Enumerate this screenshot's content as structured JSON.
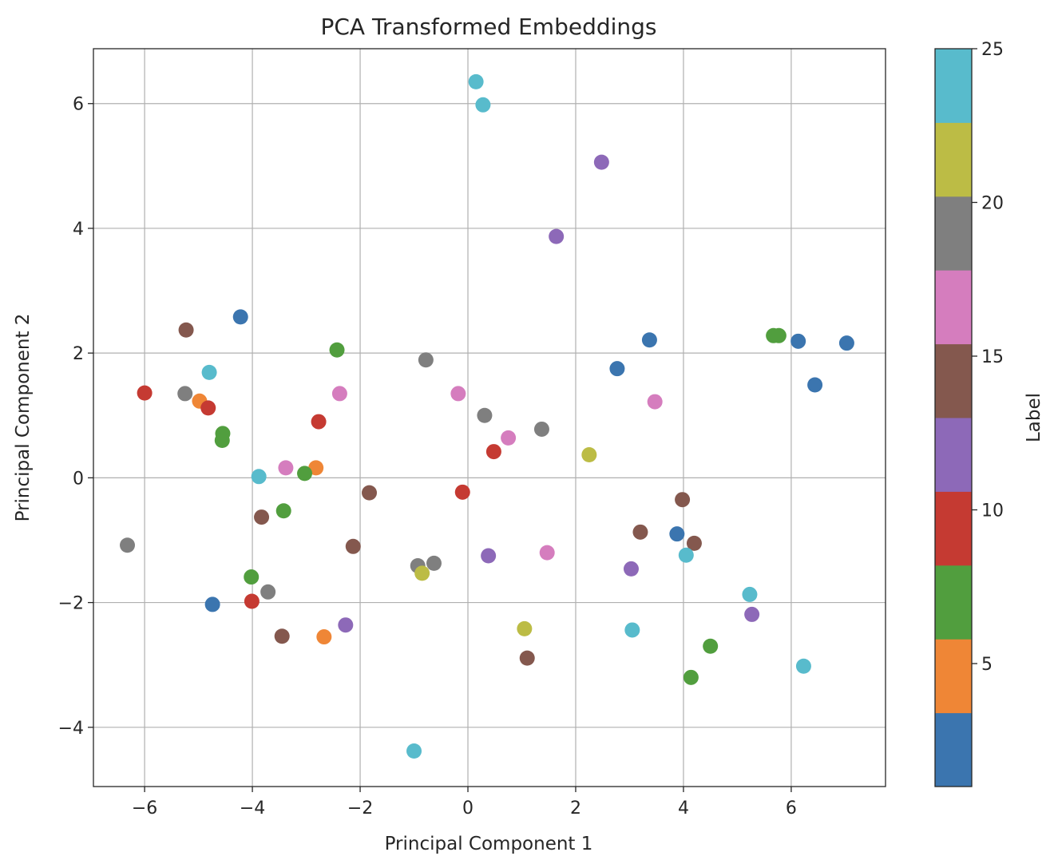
{
  "chart_data": {
    "type": "scatter",
    "title": "PCA Transformed Embeddings",
    "xlabel": "Principal Component 1",
    "ylabel": "Principal Component 2",
    "xlim": [
      -6.95,
      7.75
    ],
    "ylim": [
      -4.95,
      6.88
    ],
    "x_ticks": [
      -6,
      -4,
      -2,
      0,
      2,
      4,
      6
    ],
    "y_ticks": [
      -4,
      -2,
      0,
      2,
      4,
      6
    ],
    "grid": true,
    "colorbar": {
      "label": "Label",
      "range": [
        1,
        25
      ],
      "ticks": [
        5,
        10,
        15,
        20,
        25
      ],
      "colormap": "tab10",
      "colors": [
        "#3b75af",
        "#ef8636",
        "#519e3e",
        "#c53a32",
        "#8d69b8",
        "#84584e",
        "#d57dbe",
        "#7f7f7f",
        "#bcbc45",
        "#58bbcc"
      ]
    },
    "points": [
      {
        "x": 0.15,
        "y": 6.35,
        "label": 25
      },
      {
        "x": 0.28,
        "y": 5.98,
        "label": 25
      },
      {
        "x": 2.48,
        "y": 5.06,
        "label": 12
      },
      {
        "x": 1.64,
        "y": 3.87,
        "label": 12
      },
      {
        "x": -4.22,
        "y": 2.58,
        "label": 2
      },
      {
        "x": -5.23,
        "y": 2.37,
        "label": 14
      },
      {
        "x": -2.43,
        "y": 2.05,
        "label": 7
      },
      {
        "x": -0.78,
        "y": 1.89,
        "label": 19
      },
      {
        "x": 3.37,
        "y": 2.21,
        "label": 2
      },
      {
        "x": 2.77,
        "y": 1.75,
        "label": 2
      },
      {
        "x": 5.67,
        "y": 2.28,
        "label": 7
      },
      {
        "x": 5.77,
        "y": 2.28,
        "label": 7
      },
      {
        "x": 6.13,
        "y": 2.19,
        "label": 2
      },
      {
        "x": 7.03,
        "y": 2.16,
        "label": 2
      },
      {
        "x": 6.44,
        "y": 1.49,
        "label": 2
      },
      {
        "x": -4.8,
        "y": 1.69,
        "label": 24
      },
      {
        "x": -6.0,
        "y": 1.36,
        "label": 9
      },
      {
        "x": -5.25,
        "y": 1.35,
        "label": 19
      },
      {
        "x": -4.98,
        "y": 1.23,
        "label": 5
      },
      {
        "x": -4.82,
        "y": 1.12,
        "label": 9
      },
      {
        "x": -2.38,
        "y": 1.35,
        "label": 17
      },
      {
        "x": -0.18,
        "y": 1.35,
        "label": 17
      },
      {
        "x": 3.47,
        "y": 1.22,
        "label": 17
      },
      {
        "x": -2.77,
        "y": 0.9,
        "label": 9
      },
      {
        "x": 0.31,
        "y": 1.0,
        "label": 19
      },
      {
        "x": 1.37,
        "y": 0.78,
        "label": 19
      },
      {
        "x": 0.75,
        "y": 0.64,
        "label": 17
      },
      {
        "x": -4.55,
        "y": 0.71,
        "label": 7
      },
      {
        "x": -4.56,
        "y": 0.6,
        "label": 7
      },
      {
        "x": 0.48,
        "y": 0.42,
        "label": 9
      },
      {
        "x": 2.25,
        "y": 0.37,
        "label": 21
      },
      {
        "x": -3.38,
        "y": 0.16,
        "label": 17
      },
      {
        "x": -2.82,
        "y": 0.16,
        "label": 5
      },
      {
        "x": -3.03,
        "y": 0.07,
        "label": 7
      },
      {
        "x": -3.88,
        "y": 0.02,
        "label": 24
      },
      {
        "x": -1.83,
        "y": -0.24,
        "label": 14
      },
      {
        "x": -0.1,
        "y": -0.23,
        "label": 9
      },
      {
        "x": 3.98,
        "y": -0.35,
        "label": 14
      },
      {
        "x": -3.42,
        "y": -0.53,
        "label": 7
      },
      {
        "x": -3.83,
        "y": -0.63,
        "label": 14
      },
      {
        "x": 3.2,
        "y": -0.87,
        "label": 14
      },
      {
        "x": 3.88,
        "y": -0.9,
        "label": 2
      },
      {
        "x": 4.2,
        "y": -1.05,
        "label": 14
      },
      {
        "x": -6.32,
        "y": -1.08,
        "label": 19
      },
      {
        "x": -2.13,
        "y": -1.1,
        "label": 14
      },
      {
        "x": 1.47,
        "y": -1.2,
        "label": 17
      },
      {
        "x": 4.05,
        "y": -1.24,
        "label": 24
      },
      {
        "x": 0.38,
        "y": -1.25,
        "label": 12
      },
      {
        "x": -0.63,
        "y": -1.37,
        "label": 19
      },
      {
        "x": -0.93,
        "y": -1.41,
        "label": 19
      },
      {
        "x": 3.03,
        "y": -1.46,
        "label": 12
      },
      {
        "x": -0.85,
        "y": -1.53,
        "label": 21
      },
      {
        "x": -4.02,
        "y": -1.59,
        "label": 7
      },
      {
        "x": -3.71,
        "y": -1.83,
        "label": 19
      },
      {
        "x": 5.23,
        "y": -1.87,
        "label": 24
      },
      {
        "x": -4.01,
        "y": -1.98,
        "label": 9
      },
      {
        "x": -4.74,
        "y": -2.03,
        "label": 2
      },
      {
        "x": 5.27,
        "y": -2.19,
        "label": 12
      },
      {
        "x": -2.27,
        "y": -2.36,
        "label": 12
      },
      {
        "x": 1.05,
        "y": -2.42,
        "label": 21
      },
      {
        "x": 3.05,
        "y": -2.44,
        "label": 24
      },
      {
        "x": -3.45,
        "y": -2.54,
        "label": 14
      },
      {
        "x": -2.67,
        "y": -2.55,
        "label": 5
      },
      {
        "x": 4.5,
        "y": -2.7,
        "label": 7
      },
      {
        "x": 1.1,
        "y": -2.89,
        "label": 14
      },
      {
        "x": 6.23,
        "y": -3.02,
        "label": 24
      },
      {
        "x": 4.14,
        "y": -3.2,
        "label": 7
      },
      {
        "x": -1.0,
        "y": -4.38,
        "label": 24
      }
    ]
  }
}
